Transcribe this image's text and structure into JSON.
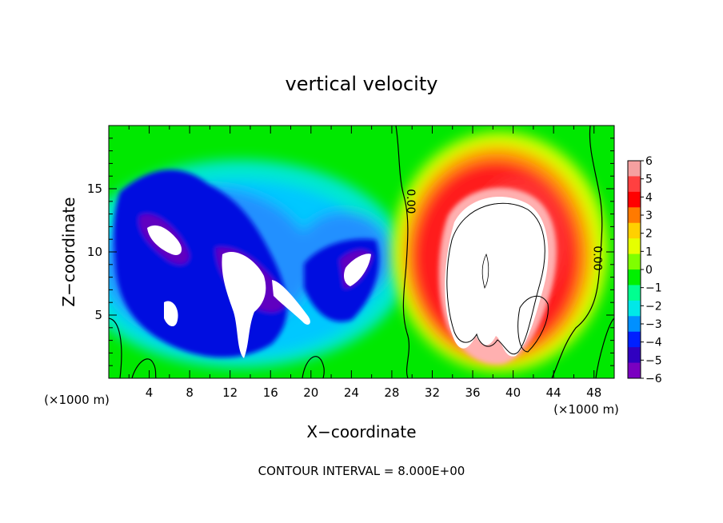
{
  "chart_data": {
    "type": "heatmap",
    "title": "vertical velocity",
    "xlabel": "X−coordinate",
    "ylabel": "Z−coordinate",
    "x_unit_left": "(×1000 m)",
    "x_unit_right": "(×1000 m)",
    "footer": "CONTOUR INTERVAL = 8.000E+00",
    "xlim": [
      0,
      50
    ],
    "ylim": [
      0,
      20
    ],
    "x_ticks": [
      4,
      8,
      12,
      16,
      20,
      24,
      28,
      32,
      36,
      40,
      44,
      48
    ],
    "y_ticks": [
      5,
      10,
      15
    ],
    "contour_labels": [
      {
        "text": "0.00",
        "x": 29.5,
        "y": 14,
        "rotate": 90
      },
      {
        "text": "0.00",
        "x": 48.0,
        "y": 9.5,
        "rotate": 90
      }
    ],
    "colorbar": {
      "levels": [
        6,
        5,
        4,
        3,
        2,
        1,
        0,
        "−1",
        "−2",
        "−3",
        "−4",
        "−5",
        "−6"
      ],
      "colors": [
        "#f5a0a0",
        "#ff4040",
        "#ff0000",
        "#ff7a00",
        "#ffd000",
        "#e6ff00",
        "#7fff00",
        "#00f000",
        "#00ff90",
        "#00e8e8",
        "#0090ff",
        "#0020ff",
        "#3000c0",
        "#7a00c0"
      ]
    },
    "features": [
      {
        "kind": "updraft",
        "cx": 38.5,
        "cz": 9.5,
        "rx": 9.5,
        "rz": 8.5
      },
      {
        "kind": "downdraft",
        "cx": 13.0,
        "cz": 10.0,
        "rx": 11.0,
        "rz": 6.5
      },
      {
        "kind": "downdraft",
        "cx": 26.0,
        "cz": 10.0,
        "rx": 3.5,
        "rz": 3.5
      }
    ]
  }
}
